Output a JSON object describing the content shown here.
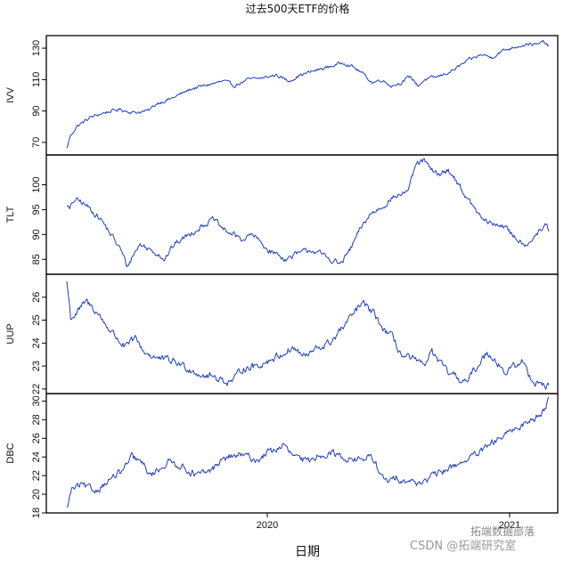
{
  "chart_data": {
    "type": "line",
    "title": "过去500天ETF的价格",
    "xlabel": "日期",
    "x_ticks": [
      "2020",
      "2021"
    ],
    "line_color": "#1f3fbf",
    "panels": [
      {
        "name": "IVV",
        "ylabel": "IVV",
        "yticks": [
          70,
          90,
          110,
          130
        ],
        "ylim": [
          62,
          138
        ],
        "knots": [
          [
            0,
            66
          ],
          [
            3,
            73
          ],
          [
            10,
            80
          ],
          [
            25,
            86
          ],
          [
            40,
            89
          ],
          [
            55,
            91
          ],
          [
            70,
            89
          ],
          [
            85,
            90
          ],
          [
            95,
            95
          ],
          [
            110,
            98
          ],
          [
            130,
            104
          ],
          [
            150,
            107
          ],
          [
            165,
            109
          ],
          [
            175,
            106
          ],
          [
            190,
            110
          ],
          [
            205,
            111
          ],
          [
            220,
            113
          ],
          [
            232,
            109
          ],
          [
            245,
            113
          ],
          [
            262,
            116
          ],
          [
            280,
            119
          ],
          [
            290,
            121
          ],
          [
            300,
            118
          ],
          [
            310,
            114
          ],
          [
            320,
            108
          ],
          [
            330,
            110
          ],
          [
            340,
            106
          ],
          [
            350,
            108
          ],
          [
            360,
            112
          ],
          [
            368,
            106
          ],
          [
            375,
            110
          ],
          [
            390,
            112
          ],
          [
            405,
            116
          ],
          [
            420,
            122
          ],
          [
            435,
            126
          ],
          [
            445,
            124
          ],
          [
            455,
            128
          ],
          [
            470,
            131
          ],
          [
            485,
            133
          ],
          [
            492,
            132
          ],
          [
            500,
            134
          ],
          [
            505,
            131
          ]
        ],
        "noise": 0.9
      },
      {
        "name": "TLT",
        "ylabel": "TLT",
        "yticks": [
          85,
          90,
          95,
          100
        ],
        "ylim": [
          82,
          106
        ],
        "knots": [
          [
            0,
            96
          ],
          [
            3,
            95
          ],
          [
            8,
            97
          ],
          [
            15,
            96.5
          ],
          [
            25,
            95
          ],
          [
            35,
            93
          ],
          [
            45,
            90
          ],
          [
            55,
            87
          ],
          [
            62,
            83.5
          ],
          [
            68,
            86
          ],
          [
            75,
            88
          ],
          [
            85,
            87
          ],
          [
            95,
            86
          ],
          [
            100,
            85
          ],
          [
            110,
            88
          ],
          [
            125,
            90
          ],
          [
            140,
            92
          ],
          [
            150,
            93
          ],
          [
            160,
            91
          ],
          [
            170,
            90
          ],
          [
            180,
            89
          ],
          [
            190,
            90
          ],
          [
            205,
            87
          ],
          [
            215,
            86
          ],
          [
            225,
            85
          ],
          [
            235,
            86
          ],
          [
            250,
            87
          ],
          [
            260,
            86
          ],
          [
            270,
            85
          ],
          [
            280,
            84
          ],
          [
            290,
            87
          ],
          [
            300,
            91
          ],
          [
            310,
            94
          ],
          [
            318,
            95
          ],
          [
            325,
            96
          ],
          [
            330,
            97
          ],
          [
            340,
            98
          ],
          [
            350,
            99
          ],
          [
            357,
            104
          ],
          [
            365,
            105
          ],
          [
            372,
            103
          ],
          [
            380,
            102
          ],
          [
            390,
            103
          ],
          [
            398,
            101
          ],
          [
            410,
            97
          ],
          [
            418,
            95
          ],
          [
            425,
            93
          ],
          [
            435,
            92
          ],
          [
            445,
            92
          ],
          [
            455,
            90
          ],
          [
            462,
            89
          ],
          [
            470,
            88
          ],
          [
            475,
            89
          ],
          [
            480,
            90
          ],
          [
            487,
            91
          ],
          [
            490,
            92
          ],
          [
            493,
            91
          ]
        ],
        "noise": 0.5
      },
      {
        "name": "UUP",
        "ylabel": "UUP",
        "yticks": [
          22,
          23,
          24,
          25,
          26
        ],
        "ylim": [
          21.8,
          27.0
        ],
        "knots": [
          [
            0,
            26.7
          ],
          [
            4,
            25.1
          ],
          [
            10,
            25.3
          ],
          [
            20,
            25.8
          ],
          [
            30,
            25.4
          ],
          [
            40,
            24.8
          ],
          [
            50,
            24.3
          ],
          [
            60,
            23.8
          ],
          [
            70,
            24.2
          ],
          [
            80,
            23.6
          ],
          [
            95,
            23.3
          ],
          [
            110,
            23.2
          ],
          [
            125,
            22.9
          ],
          [
            140,
            22.6
          ],
          [
            155,
            22.5
          ],
          [
            165,
            22.3
          ],
          [
            172,
            22.4
          ],
          [
            180,
            22.9
          ],
          [
            195,
            23.0
          ],
          [
            210,
            23.3
          ],
          [
            220,
            23.5
          ],
          [
            232,
            23.8
          ],
          [
            245,
            23.4
          ],
          [
            255,
            23.7
          ],
          [
            270,
            24.0
          ],
          [
            280,
            24.5
          ],
          [
            290,
            25.0
          ],
          [
            300,
            25.6
          ],
          [
            305,
            25.7
          ],
          [
            315,
            25.3
          ],
          [
            325,
            24.6
          ],
          [
            335,
            24.2
          ],
          [
            345,
            23.4
          ],
          [
            355,
            23.3
          ],
          [
            365,
            23.0
          ],
          [
            375,
            23.6
          ],
          [
            385,
            23.0
          ],
          [
            395,
            22.6
          ],
          [
            405,
            22.4
          ],
          [
            412,
            22.3
          ],
          [
            418,
            22.8
          ],
          [
            425,
            23.2
          ],
          [
            432,
            23.6
          ],
          [
            440,
            23.3
          ],
          [
            450,
            22.7
          ],
          [
            460,
            23.0
          ],
          [
            468,
            23.2
          ],
          [
            475,
            22.6
          ],
          [
            480,
            22.3
          ],
          [
            485,
            22.3
          ],
          [
            490,
            22.2
          ],
          [
            495,
            22.1
          ]
        ],
        "noise": 0.14
      },
      {
        "name": "DBC",
        "ylabel": "DBC",
        "yticks": [
          18,
          20,
          22,
          24,
          26,
          28,
          30
        ],
        "ylim": [
          18,
          30.8
        ],
        "knots": [
          [
            0,
            18.4
          ],
          [
            5,
            20.5
          ],
          [
            15,
            21.0
          ],
          [
            30,
            20.3
          ],
          [
            45,
            21.5
          ],
          [
            60,
            22.5
          ],
          [
            70,
            24.0
          ],
          [
            80,
            23.4
          ],
          [
            90,
            22.0
          ],
          [
            100,
            22.8
          ],
          [
            110,
            23.5
          ],
          [
            120,
            23.2
          ],
          [
            130,
            22.6
          ],
          [
            140,
            22.0
          ],
          [
            155,
            22.5
          ],
          [
            165,
            23.6
          ],
          [
            175,
            24.0
          ],
          [
            185,
            24.2
          ],
          [
            195,
            24.0
          ],
          [
            205,
            23.6
          ],
          [
            215,
            24.5
          ],
          [
            225,
            24.8
          ],
          [
            232,
            25.3
          ],
          [
            240,
            24.4
          ],
          [
            250,
            23.7
          ],
          [
            260,
            23.5
          ],
          [
            270,
            24.2
          ],
          [
            285,
            24.5
          ],
          [
            295,
            24.0
          ],
          [
            305,
            23.8
          ],
          [
            315,
            23.7
          ],
          [
            325,
            24.0
          ],
          [
            332,
            23.4
          ],
          [
            338,
            21.8
          ],
          [
            345,
            21.3
          ],
          [
            355,
            21.8
          ],
          [
            365,
            21.5
          ],
          [
            375,
            21.2
          ],
          [
            385,
            21.5
          ],
          [
            395,
            22.0
          ],
          [
            405,
            22.5
          ],
          [
            415,
            23.0
          ],
          [
            425,
            23.5
          ],
          [
            435,
            24.0
          ],
          [
            445,
            24.5
          ],
          [
            455,
            25.3
          ],
          [
            465,
            26.0
          ],
          [
            475,
            26.5
          ],
          [
            485,
            27.2
          ],
          [
            495,
            27.8
          ],
          [
            505,
            28.3
          ],
          [
            512,
            29.0
          ],
          [
            518,
            30.2
          ]
        ],
        "noise": 0.32
      }
    ]
  },
  "watermark": {
    "csdn": "CSDN @拓端研究室",
    "brand": "拓端数据部落"
  }
}
